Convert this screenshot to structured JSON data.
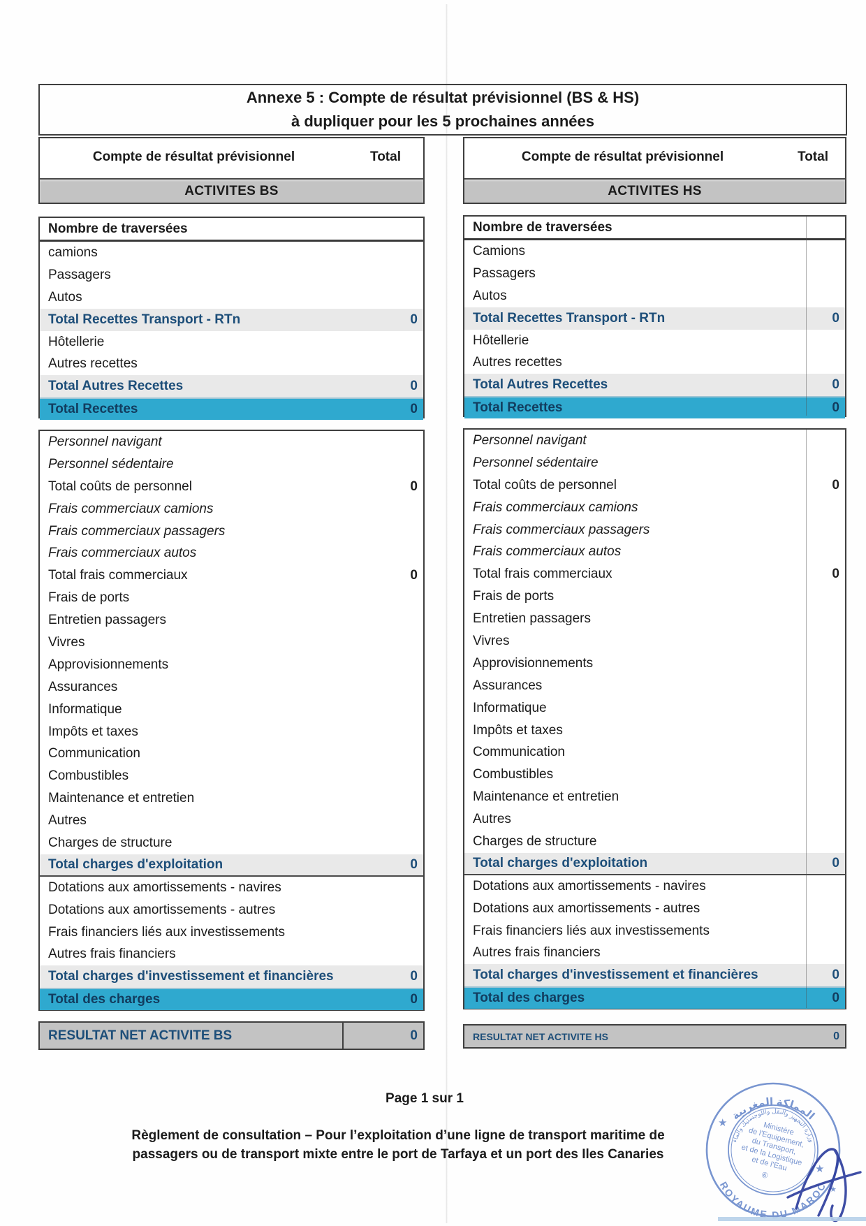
{
  "document": {
    "title_line1": "Annexe 5 : Compte de résultat prévisionnel (BS & HS)",
    "title_line2": "à dupliquer pour les 5 prochaines années",
    "column_header": "Compte de résultat prévisionnel",
    "total_header": "Total"
  },
  "tables": {
    "bs": {
      "banner": "ACTIVITES BS",
      "recettes": [
        {
          "label": "Nombre de traversées",
          "style": "header",
          "value": ""
        },
        {
          "label": "camions",
          "style": "plain",
          "value": ""
        },
        {
          "label": "Passagers",
          "style": "plain",
          "value": ""
        },
        {
          "label": "Autos",
          "style": "plain",
          "value": ""
        },
        {
          "label": "Total Recettes Transport - RTn",
          "style": "subtotal",
          "value": "0"
        },
        {
          "label": "Hôtellerie",
          "style": "plain",
          "value": ""
        },
        {
          "label": "Autres recettes",
          "style": "plain",
          "value": ""
        },
        {
          "label": "Total Autres Recettes",
          "style": "subtotal",
          "value": "0"
        },
        {
          "label": "Total Recettes",
          "style": "total",
          "value": "0"
        }
      ],
      "charges": [
        {
          "label": "Personnel navigant",
          "style": "italic",
          "value": ""
        },
        {
          "label": "Personnel sédentaire",
          "style": "italic",
          "value": ""
        },
        {
          "label": "Total coûts de personnel",
          "style": "plain",
          "value": "0"
        },
        {
          "label": "Frais commerciaux camions",
          "style": "italic",
          "value": ""
        },
        {
          "label": "Frais commerciaux passagers",
          "style": "italic",
          "value": ""
        },
        {
          "label": "Frais commerciaux autos",
          "style": "italic",
          "value": ""
        },
        {
          "label": "Total frais commerciaux",
          "style": "plain",
          "value": "0"
        },
        {
          "label": "Frais de ports",
          "style": "plain",
          "value": ""
        },
        {
          "label": "Entretien passagers",
          "style": "plain",
          "value": ""
        },
        {
          "label": "Vivres",
          "style": "plain",
          "value": ""
        },
        {
          "label": "Approvisionnements",
          "style": "plain",
          "value": ""
        },
        {
          "label": "Assurances",
          "style": "plain",
          "value": ""
        },
        {
          "label": "Informatique",
          "style": "plain",
          "value": ""
        },
        {
          "label": "Impôts et taxes",
          "style": "plain",
          "value": ""
        },
        {
          "label": "Communication",
          "style": "plain",
          "value": ""
        },
        {
          "label": "Combustibles",
          "style": "plain",
          "value": ""
        },
        {
          "label": "Maintenance et entretien",
          "style": "plain",
          "value": ""
        },
        {
          "label": "Autres",
          "style": "plain",
          "value": ""
        },
        {
          "label": "Charges de structure",
          "style": "plain",
          "value": ""
        },
        {
          "label": "Total charges d'exploitation",
          "style": "subtotal",
          "value": "0",
          "divider_below": true
        },
        {
          "label": "Dotations aux amortissements - navires",
          "style": "plain",
          "value": ""
        },
        {
          "label": "Dotations aux amortissements - autres",
          "style": "plain",
          "value": ""
        },
        {
          "label": "Frais financiers liés aux investissements",
          "style": "plain",
          "value": ""
        },
        {
          "label": "Autres frais financiers",
          "style": "plain",
          "value": ""
        },
        {
          "label": "Total charges d'investissement et financières",
          "style": "subtotal",
          "value": "0"
        },
        {
          "label": "Total des charges",
          "style": "total",
          "value": "0"
        }
      ],
      "result_label": "RESULTAT NET ACTIVITE BS",
      "result_value": "0"
    },
    "hs": {
      "banner": "ACTIVITES HS",
      "recettes": [
        {
          "label": "Nombre de traversées",
          "style": "header",
          "value": ""
        },
        {
          "label": "Camions",
          "style": "plain",
          "value": ""
        },
        {
          "label": "Passagers",
          "style": "plain",
          "value": ""
        },
        {
          "label": "Autos",
          "style": "plain",
          "value": ""
        },
        {
          "label": "Total Recettes Transport - RTn",
          "style": "subtotal",
          "value": "0"
        },
        {
          "label": "Hôtellerie",
          "style": "plain",
          "value": ""
        },
        {
          "label": "Autres recettes",
          "style": "plain",
          "value": ""
        },
        {
          "label": "Total Autres Recettes",
          "style": "subtotal",
          "value": "0"
        },
        {
          "label": "Total Recettes",
          "style": "total",
          "value": "0"
        }
      ],
      "charges": [
        {
          "label": "Personnel navigant",
          "style": "italic",
          "value": ""
        },
        {
          "label": "Personnel sédentaire",
          "style": "italic",
          "value": ""
        },
        {
          "label": "Total coûts de personnel",
          "style": "plain",
          "value": "0"
        },
        {
          "label": "Frais commerciaux camions",
          "style": "italic",
          "value": ""
        },
        {
          "label": "Frais commerciaux passagers",
          "style": "italic",
          "value": ""
        },
        {
          "label": "Frais commerciaux autos",
          "style": "italic",
          "value": ""
        },
        {
          "label": "Total frais commerciaux",
          "style": "plain",
          "value": "0"
        },
        {
          "label": "Frais de ports",
          "style": "plain",
          "value": ""
        },
        {
          "label": "Entretien passagers",
          "style": "plain",
          "value": ""
        },
        {
          "label": "Vivres",
          "style": "plain",
          "value": ""
        },
        {
          "label": "Approvisionnements",
          "style": "plain",
          "value": ""
        },
        {
          "label": "Assurances",
          "style": "plain",
          "value": ""
        },
        {
          "label": "Informatique",
          "style": "plain",
          "value": ""
        },
        {
          "label": "Impôts et taxes",
          "style": "plain",
          "value": ""
        },
        {
          "label": "Communication",
          "style": "plain",
          "value": ""
        },
        {
          "label": "Combustibles",
          "style": "plain",
          "value": ""
        },
        {
          "label": "Maintenance et entretien",
          "style": "plain",
          "value": ""
        },
        {
          "label": "Autres",
          "style": "plain",
          "value": ""
        },
        {
          "label": "Charges de structure",
          "style": "plain",
          "value": ""
        },
        {
          "label": "Total charges d'exploitation",
          "style": "subtotal",
          "value": "0",
          "divider_below": true
        },
        {
          "label": "Dotations aux amortissements - navires",
          "style": "plain",
          "value": ""
        },
        {
          "label": "Dotations aux amortissements - autres",
          "style": "plain",
          "value": ""
        },
        {
          "label": "Frais financiers liés aux investissements",
          "style": "plain",
          "value": ""
        },
        {
          "label": "Autres frais financiers",
          "style": "plain",
          "value": ""
        },
        {
          "label": "Total charges d'investissement et financières",
          "style": "subtotal",
          "value": "0"
        },
        {
          "label": "Total des charges",
          "style": "total",
          "value": "0"
        }
      ],
      "result_label": "RESULTAT NET ACTIVITE HS",
      "result_value": "0"
    }
  },
  "footer": {
    "page_label": "Page 1 sur 1",
    "reglement_line1": "Règlement de consultation – Pour l’exploitation d’une ligne de transport maritime de",
    "reglement_line2": "passagers ou de transport mixte entre le port de Tarfaya et un port des Iles Canaries"
  },
  "stamp": {
    "outer_top_arabic": "المملكة المغربية",
    "outer_bottom": "ROYAUME DU MAROC",
    "inner_ring_arabic": "وزارة التجهيز والنقل واللوجستيك والماء",
    "center_lines": [
      "Ministère",
      "de l'Equipement,",
      "du Transport,",
      "et de la Logistique",
      "et de l'Eau"
    ],
    "mark": "⑥"
  },
  "colors": {
    "cyan_row": "#2fa9cf",
    "gray_row": "#e9e9e9",
    "banner_gray": "#c3c3c3",
    "navy_text": "#1d4e79",
    "stamp_blue": "#5b7ec6"
  }
}
